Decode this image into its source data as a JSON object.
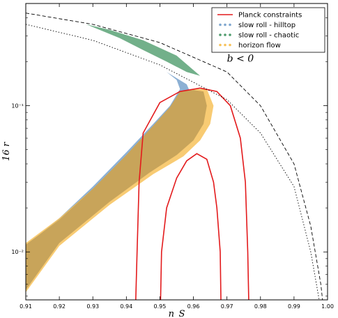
{
  "chart_data": {
    "type": "area",
    "title": "",
    "xlabel": "n_S",
    "ylabel": "16 r",
    "xlim": [
      0.91,
      1.0
    ],
    "ylim": [
      0.0047,
      0.5
    ],
    "yscale": "log",
    "grid": false,
    "legend_position": "top-right",
    "x_ticks": [
      0.91,
      0.92,
      0.93,
      0.94,
      0.95,
      0.96,
      0.97,
      0.98,
      0.99,
      1.0
    ],
    "x_tick_labels": [
      "0.91",
      "0.92",
      "0.93",
      "0.94",
      "0.95",
      "0.96",
      "0.97",
      "0.98",
      "0.99",
      "1.00"
    ],
    "y_ticks": [
      0.01,
      0.1
    ],
    "y_tick_labels": [
      "10⁻²",
      "10⁻¹"
    ],
    "annotation": {
      "text": "b < 0",
      "x": 0.974,
      "y": 0.2
    },
    "legend": [
      {
        "label": "Planck constraints",
        "style": "line",
        "color": "#e31a1c"
      },
      {
        "label": "slow roll - hilltop",
        "style": "dots",
        "color": "#7fa7cf"
      },
      {
        "label": "slow roll - chaotic",
        "style": "dots",
        "color": "#4f9c6d"
      },
      {
        "label": "horizon flow",
        "style": "dots",
        "color": "#f7c25a"
      }
    ],
    "series": [
      {
        "name": "slow roll - chaotic",
        "kind": "band",
        "color": "#4f9c6d",
        "opacity": 0.8,
        "upper": [
          [
            0.928,
            0.36
          ],
          [
            0.935,
            0.33
          ],
          [
            0.945,
            0.28
          ],
          [
            0.955,
            0.22
          ],
          [
            0.962,
            0.16
          ]
        ],
        "lower": [
          [
            0.962,
            0.16
          ],
          [
            0.958,
            0.17
          ],
          [
            0.952,
            0.2
          ],
          [
            0.945,
            0.24
          ],
          [
            0.938,
            0.29
          ],
          [
            0.928,
            0.36
          ]
        ]
      },
      {
        "name": "slow roll - hilltop",
        "kind": "band",
        "color": "#7fa7cf",
        "opacity": 0.9,
        "upper": [
          [
            0.91,
            0.011
          ],
          [
            0.92,
            0.017
          ],
          [
            0.93,
            0.028
          ],
          [
            0.94,
            0.048
          ],
          [
            0.948,
            0.075
          ],
          [
            0.953,
            0.1
          ],
          [
            0.956,
            0.13
          ],
          [
            0.955,
            0.15
          ],
          [
            0.952,
            0.17
          ]
        ],
        "lower": [
          [
            0.952,
            0.17
          ],
          [
            0.958,
            0.14
          ],
          [
            0.96,
            0.11
          ],
          [
            0.959,
            0.08
          ],
          [
            0.955,
            0.055
          ],
          [
            0.948,
            0.04
          ],
          [
            0.935,
            0.025
          ],
          [
            0.92,
            0.015
          ],
          [
            0.91,
            0.0055
          ]
        ]
      },
      {
        "name": "horizon flow",
        "kind": "band",
        "color": "#f7c25a",
        "opacity": 0.85,
        "upper": [
          [
            0.91,
            0.0115
          ],
          [
            0.92,
            0.017
          ],
          [
            0.93,
            0.027
          ],
          [
            0.94,
            0.045
          ],
          [
            0.948,
            0.07
          ],
          [
            0.953,
            0.095
          ],
          [
            0.956,
            0.12
          ],
          [
            0.96,
            0.13
          ],
          [
            0.964,
            0.13
          ]
        ],
        "lower": [
          [
            0.964,
            0.13
          ],
          [
            0.966,
            0.1
          ],
          [
            0.965,
            0.075
          ],
          [
            0.962,
            0.058
          ],
          [
            0.957,
            0.045
          ],
          [
            0.948,
            0.034
          ],
          [
            0.935,
            0.021
          ],
          [
            0.92,
            0.011
          ],
          [
            0.91,
            0.0053
          ]
        ]
      },
      {
        "name": "overlap",
        "kind": "band",
        "color": "#c8a45a",
        "opacity": 1.0,
        "upper": [
          [
            0.91,
            0.0112
          ],
          [
            0.92,
            0.0166
          ],
          [
            0.93,
            0.027
          ],
          [
            0.94,
            0.046
          ],
          [
            0.948,
            0.073
          ],
          [
            0.953,
            0.098
          ],
          [
            0.956,
            0.125
          ],
          [
            0.96,
            0.128
          ],
          [
            0.963,
            0.125
          ]
        ],
        "lower": [
          [
            0.963,
            0.125
          ],
          [
            0.964,
            0.1
          ],
          [
            0.963,
            0.075
          ],
          [
            0.96,
            0.058
          ],
          [
            0.955,
            0.046
          ],
          [
            0.947,
            0.035
          ],
          [
            0.935,
            0.022
          ],
          [
            0.92,
            0.0115
          ],
          [
            0.91,
            0.0055
          ]
        ]
      },
      {
        "name": "Planck 95%",
        "kind": "line",
        "color": "#e31a1c",
        "dash": "none",
        "width": 1.6,
        "points": [
          [
            0.9428,
            0.0047
          ],
          [
            0.9432,
            0.01
          ],
          [
            0.9438,
            0.03
          ],
          [
            0.945,
            0.065
          ],
          [
            0.95,
            0.105
          ],
          [
            0.956,
            0.125
          ],
          [
            0.962,
            0.132
          ],
          [
            0.967,
            0.125
          ],
          [
            0.971,
            0.1
          ],
          [
            0.974,
            0.06
          ],
          [
            0.9755,
            0.03
          ],
          [
            0.9762,
            0.01
          ],
          [
            0.9765,
            0.0047
          ]
        ]
      },
      {
        "name": "Planck 68%",
        "kind": "line",
        "color": "#e31a1c",
        "dash": "none",
        "width": 1.6,
        "points": [
          [
            0.9502,
            0.0047
          ],
          [
            0.9505,
            0.01
          ],
          [
            0.952,
            0.02
          ],
          [
            0.955,
            0.032
          ],
          [
            0.958,
            0.042
          ],
          [
            0.961,
            0.047
          ],
          [
            0.964,
            0.043
          ],
          [
            0.966,
            0.03
          ],
          [
            0.967,
            0.02
          ],
          [
            0.968,
            0.01
          ],
          [
            0.9682,
            0.0047
          ]
        ]
      },
      {
        "name": "dashed boundary",
        "kind": "line",
        "color": "#000000",
        "dash": "5,3",
        "width": 0.9,
        "points": [
          [
            0.91,
            0.43
          ],
          [
            0.93,
            0.36
          ],
          [
            0.95,
            0.27
          ],
          [
            0.97,
            0.17
          ],
          [
            0.98,
            0.1
          ],
          [
            0.99,
            0.04
          ],
          [
            0.995,
            0.015
          ],
          [
            0.998,
            0.006
          ],
          [
            0.9985,
            0.0047
          ]
        ]
      },
      {
        "name": "dash-dot boundary",
        "kind": "line",
        "color": "#000000",
        "dash": "1.5,2.5",
        "width": 0.9,
        "points": [
          [
            0.91,
            0.36
          ],
          [
            0.93,
            0.28
          ],
          [
            0.95,
            0.19
          ],
          [
            0.97,
            0.11
          ],
          [
            0.98,
            0.065
          ],
          [
            0.99,
            0.028
          ],
          [
            0.995,
            0.01
          ],
          [
            0.9975,
            0.0047
          ]
        ]
      }
    ]
  }
}
